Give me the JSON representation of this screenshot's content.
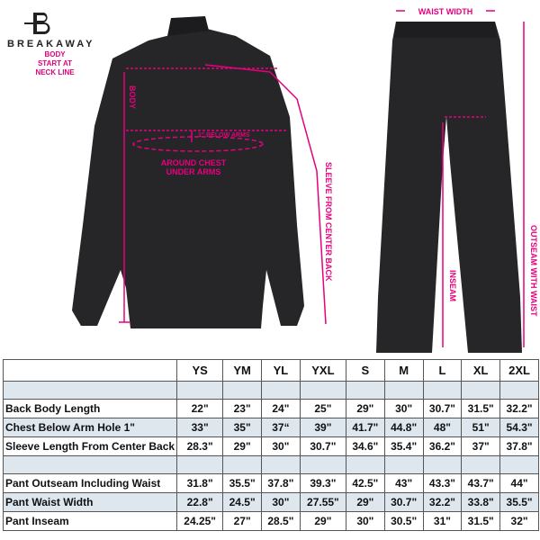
{
  "brand": {
    "name": "BREAKAWAY"
  },
  "accent_color": "#e6007e",
  "annotations": {
    "body_start": "BODY START AT NECK LINE",
    "body": "BODY",
    "below_arms": "1\" BELOW ARMS",
    "chest": "AROUND CHEST UNDER ARMS",
    "sleeve": "SLEEVE FROM CENTER BACK",
    "waist_width": "WAIST WIDTH",
    "inseam": "INSEAM",
    "outseam": "OUTSEAM WITH WAIST"
  },
  "table": {
    "sizes": [
      "YS",
      "YM",
      "YL",
      "YXL",
      "S",
      "M",
      "L",
      "XL",
      "2XL"
    ],
    "jacket_rows": [
      {
        "label": "Back Body Length",
        "values": [
          "22\"",
          "23\"",
          "24\"",
          "25\"",
          "29\"",
          "30\"",
          "30.7\"",
          "31.5\"",
          "32.2\""
        ]
      },
      {
        "label": "Chest Below Arm Hole 1\"",
        "values": [
          "33\"",
          "35\"",
          "37“",
          "39\"",
          "41.7\"",
          "44.8\"",
          "48\"",
          "51\"",
          "54.3\""
        ]
      },
      {
        "label": "Sleeve Length From Center Back",
        "values": [
          "28.3\"",
          "29\"",
          "30\"",
          "30.7\"",
          "34.6\"",
          "35.4\"",
          "36.2\"",
          "37\"",
          "37.8\""
        ]
      }
    ],
    "pant_rows": [
      {
        "label": "Pant Outseam Including Waist",
        "values": [
          "31.8\"",
          "35.5\"",
          "37.8\"",
          "39.3\"",
          "42.5\"",
          "43\"",
          "43.3\"",
          "43.7\"",
          "44\""
        ]
      },
      {
        "label": "Pant Waist Width",
        "values": [
          "22.8\"",
          "24.5\"",
          "30\"",
          "27.55\"",
          "29\"",
          "30.7\"",
          "32.2\"",
          "33.8\"",
          "35.5\""
        ]
      },
      {
        "label": "Pant Inseam",
        "values": [
          "24.25\"",
          "27\"",
          "28.5\"",
          "29\"",
          "30\"",
          "30.5\"",
          "31\"",
          "31.5\"",
          "32\""
        ]
      }
    ]
  }
}
